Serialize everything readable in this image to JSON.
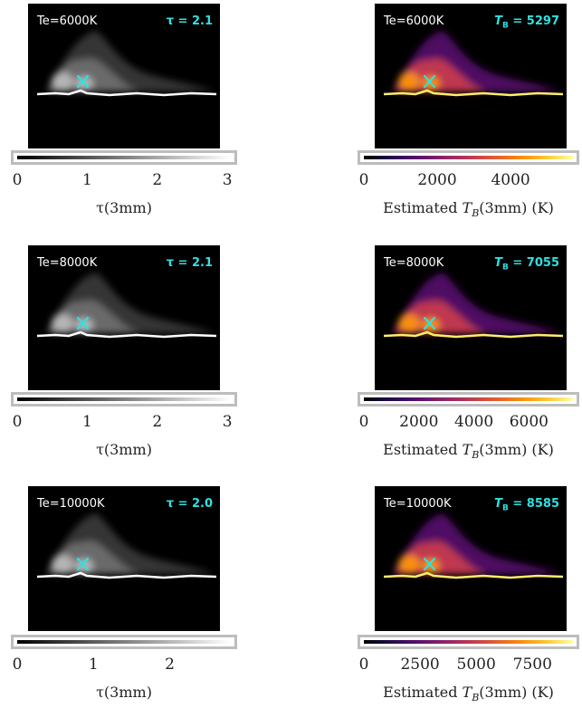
{
  "chart_data": [
    {
      "type": "heatmap",
      "panel_label": "Te=6000K",
      "stat_label": "τ = 2.1",
      "colormap": "gray",
      "colorbar": {
        "ticks": [
          "0",
          "1",
          "2",
          "3"
        ],
        "tick_values": [
          0,
          1,
          2,
          3
        ],
        "range": [
          0,
          3.05
        ]
      },
      "xlabel": "τ(3mm)"
    },
    {
      "type": "heatmap",
      "panel_label": "Te=6000K",
      "stat_label": "T_B = 5297",
      "colormap": "inferno",
      "colorbar": {
        "ticks": [
          "0",
          "2000",
          "4000"
        ],
        "tick_values": [
          0,
          2000,
          4000
        ],
        "range": [
          0,
          5700
        ]
      },
      "xlabel": "Estimated T_B(3mm) (K)"
    },
    {
      "type": "heatmap",
      "panel_label": "Te=8000K",
      "stat_label": "τ = 2.1",
      "colormap": "gray",
      "colorbar": {
        "ticks": [
          "0",
          "1",
          "2",
          "3"
        ],
        "tick_values": [
          0,
          1,
          2,
          3
        ],
        "range": [
          0,
          3.05
        ]
      },
      "xlabel": "τ(3mm)"
    },
    {
      "type": "heatmap",
      "panel_label": "Te=8000K",
      "stat_label": "T_B = 7055",
      "colormap": "inferno",
      "colorbar": {
        "ticks": [
          "0",
          "2000",
          "4000",
          "6000"
        ],
        "tick_values": [
          0,
          2000,
          4000,
          6000
        ],
        "range": [
          0,
          7600
        ]
      },
      "xlabel": "Estimated T_B(3mm) (K)"
    },
    {
      "type": "heatmap",
      "panel_label": "Te=10000K",
      "stat_label": "τ = 2.0",
      "colormap": "gray",
      "colorbar": {
        "ticks": [
          "0",
          "1",
          "2"
        ],
        "tick_values": [
          0,
          1,
          2
        ],
        "range": [
          0,
          2.8
        ]
      },
      "xlabel": "τ(3mm)"
    },
    {
      "type": "heatmap",
      "panel_label": "Te=10000K",
      "stat_label": "T_B = 8585",
      "colormap": "inferno",
      "colorbar": {
        "ticks": [
          "0",
          "2500",
          "5000",
          "7500"
        ],
        "tick_values": [
          0,
          2500,
          5000,
          7500
        ],
        "range": [
          0,
          9300
        ]
      },
      "xlabel": "Estimated T_B(3mm) (K)"
    }
  ]
}
